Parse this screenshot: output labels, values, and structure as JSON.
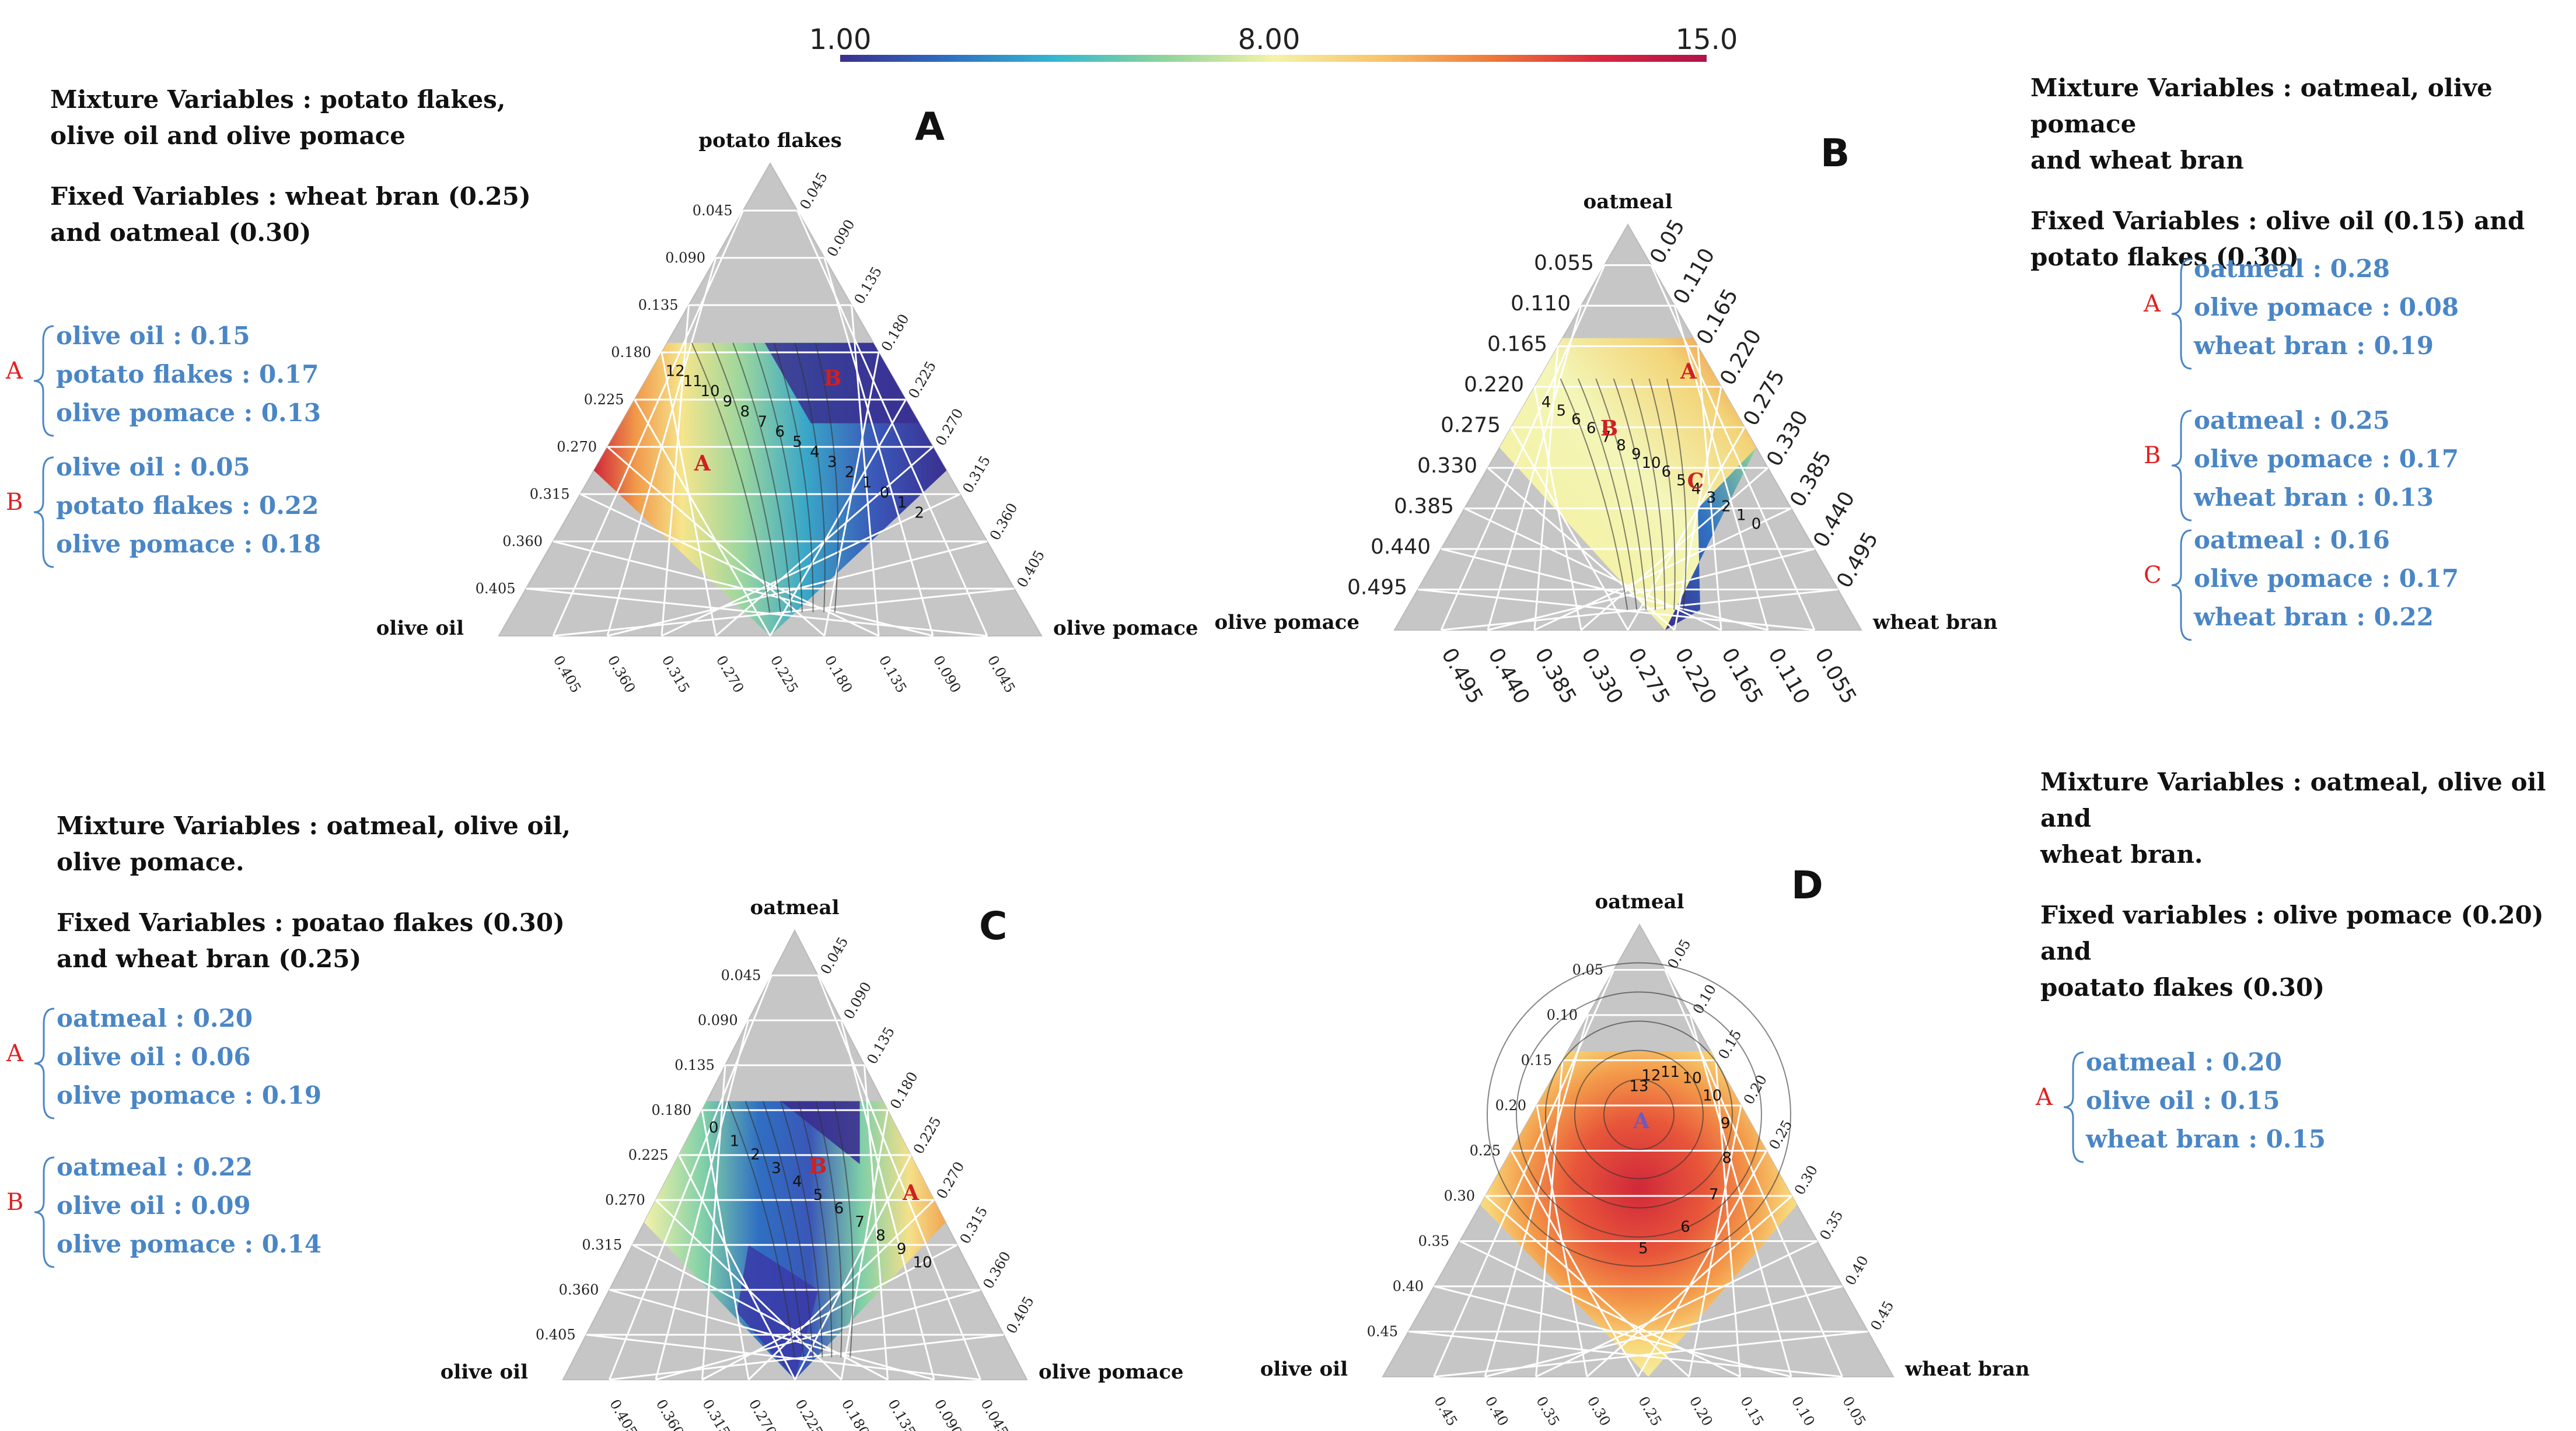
{
  "colorbar": {
    "min_label": "1.00",
    "mid_label": "8.00",
    "max_label": "15.0",
    "stops": [
      "#3a2f8f",
      "#2f6fc2",
      "#35b8d0",
      "#8fd49a",
      "#f5f2a8",
      "#f7c46a",
      "#ee7a3a",
      "#d8283e",
      "#b0124a"
    ]
  },
  "panels": [
    {
      "letter": "A",
      "mixture": [
        "Mixture Variables : potato flakes,",
        "olive oil and olive pomace"
      ],
      "fixed": [
        "Fixed Variables :  wheat bran  (0.25)",
        "and  oatmeal (0.30)"
      ],
      "top_label": "potato flakes",
      "left_label": "olive oil",
      "right_label": "olive pomace",
      "ticks": [
        "0.405",
        "0.360",
        "0.315",
        "0.270",
        "0.225",
        "0.180",
        "0.135",
        "0.090",
        "0.045"
      ],
      "points": [
        {
          "name": "A",
          "lines": [
            "olive oil : 0.15",
            "potato flakes : 0.17",
            "olive pomace : 0.13"
          ]
        },
        {
          "name": "B",
          "lines": [
            "olive oil : 0.05",
            "potato flakes : 0.22",
            "olive pomace : 0.18"
          ]
        }
      ],
      "contour_labels": [
        "12",
        "11",
        "10",
        "9",
        "8",
        "7",
        "6",
        "5",
        "4",
        "3",
        "2",
        "1",
        "0",
        "1",
        "2"
      ]
    },
    {
      "letter": "B",
      "mixture": [
        "Mixture Variables : oatmeal, olive pomace",
        "and wheat bran"
      ],
      "fixed": [
        "Fixed Variables : olive oil  (0.15) and",
        "potato flakes (0.30)"
      ],
      "top_label": "oatmeal",
      "left_label": "olive pomace",
      "right_label": "wheat bran",
      "ticks": [
        "0.495",
        "0.440",
        "0.385",
        "0.330",
        "0.275",
        "0.220",
        "0.165",
        "0.110",
        "0.055"
      ],
      "right_ticks": [
        "0.05",
        "0.110",
        "0.165",
        "0.220",
        "0.275",
        "0.330",
        "0.385",
        "0.440",
        "0.495"
      ],
      "points": [
        {
          "name": "A",
          "lines": [
            "oatmeal : 0.28",
            "olive pomace : 0.08",
            "wheat bran : 0.19"
          ]
        },
        {
          "name": "B",
          "lines": [
            "oatmeal : 0.25",
            "olive pomace : 0.17",
            "wheat bran : 0.13"
          ]
        },
        {
          "name": "C",
          "lines": [
            "oatmeal : 0.16",
            "olive pomace : 0.17",
            "wheat bran : 0.22"
          ]
        }
      ],
      "contour_labels": [
        "4",
        "5",
        "6",
        "6",
        "7",
        "8",
        "9",
        "10",
        "6",
        "5",
        "4",
        "3",
        "2",
        "1",
        "0"
      ]
    },
    {
      "letter": "C",
      "mixture": [
        "Mixture Variables : oatmeal, olive oil,",
        "olive pomace."
      ],
      "fixed": [
        "Fixed Variables : poatao flakes (0.30)",
        "and wheat bran (0.25)"
      ],
      "top_label": "oatmeal",
      "left_label": "olive oil",
      "right_label": "olive pomace",
      "ticks": [
        "0.405",
        "0.360",
        "0.315",
        "0.270",
        "0.225",
        "0.180",
        "0.135",
        "0.090",
        "0.045"
      ],
      "points": [
        {
          "name": "A",
          "lines": [
            "oatmeal : 0.20",
            "olive oil : 0.06",
            "olive pomace : 0.19"
          ]
        },
        {
          "name": "B",
          "lines": [
            "oatmeal : 0.22",
            "olive oil : 0.09",
            "olive pomace : 0.14"
          ]
        }
      ],
      "contour_labels": [
        "0",
        "1",
        "2",
        "3",
        "4",
        "5",
        "6",
        "7",
        "8",
        "9",
        "10"
      ]
    },
    {
      "letter": "D",
      "mixture": [
        "Mixture Variables : oatmeal, olive oil and",
        "wheat bran."
      ],
      "fixed": [
        "Fixed variables : olive pomace (0.20) and",
        "poatato flakes (0.30)"
      ],
      "top_label": "oatmeal",
      "left_label": "olive oil",
      "right_label": "wheat bran",
      "ticks": [
        "0.45",
        "0.40",
        "0.35",
        "0.30",
        "0.25",
        "0.20",
        "0.15",
        "0.10",
        "0.05"
      ],
      "points": [
        {
          "name": "A",
          "lines": [
            "oatmeal : 0.20",
            "olive oil : 0.15",
            "wheat bran : 0.15"
          ]
        }
      ],
      "contour_labels": [
        "13",
        "12",
        "11",
        "10",
        "10",
        "9",
        "8",
        "7",
        "6",
        "5"
      ]
    }
  ]
}
